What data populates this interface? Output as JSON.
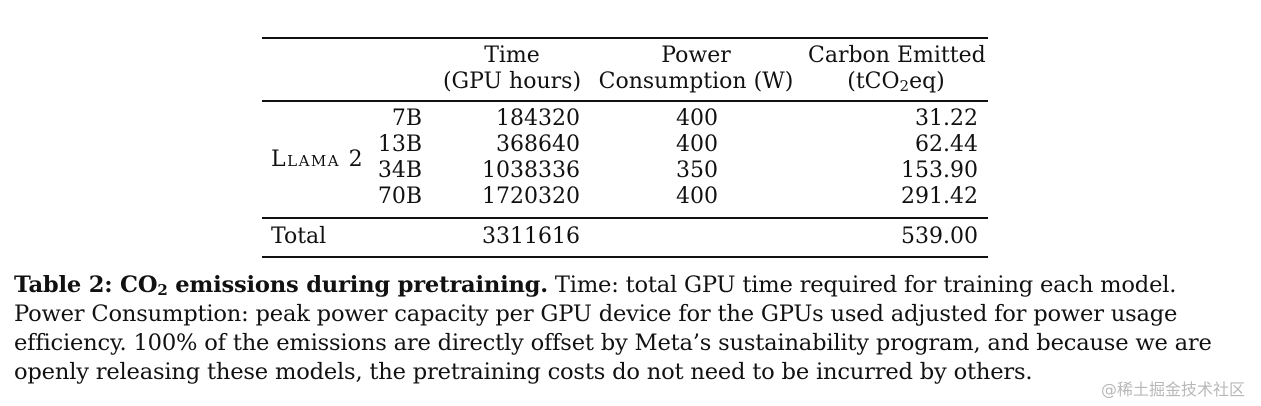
{
  "table": {
    "headers": {
      "time_line1": "Time",
      "time_line2": "(GPU hours)",
      "power_line1": "Power",
      "power_line2": "Consumption (W)",
      "carbon_line1": "Carbon Emitted",
      "carbon_line2_pre": "(tCO",
      "carbon_line2_sub": "2",
      "carbon_line2_post": "eq)"
    },
    "group_label": "Llama 2",
    "rows": [
      {
        "size": "7B",
        "time": "184320",
        "power": "400",
        "carbon": "31.22"
      },
      {
        "size": "13B",
        "time": "368640",
        "power": "400",
        "carbon": "62.44"
      },
      {
        "size": "34B",
        "time": "1038336",
        "power": "350",
        "carbon": "153.90"
      },
      {
        "size": "70B",
        "time": "1720320",
        "power": "400",
        "carbon": "291.42"
      }
    ],
    "total": {
      "label": "Total",
      "time": "3311616",
      "carbon": "539.00"
    }
  },
  "caption": {
    "title_pre": "Table 2: CO",
    "title_sub": "2",
    "title_post": " emissions during pretraining.",
    "body": " Time: total GPU time required for training each model. Power Consumption: peak power capacity per GPU device for the GPUs used adjusted for power usage efficiency. 100% of the emissions are directly offset by Meta’s sustainability program, and because we are openly releasing these models, the pretraining costs do not need to be incurred by others."
  },
  "watermark": "@稀土掘金技术社区"
}
